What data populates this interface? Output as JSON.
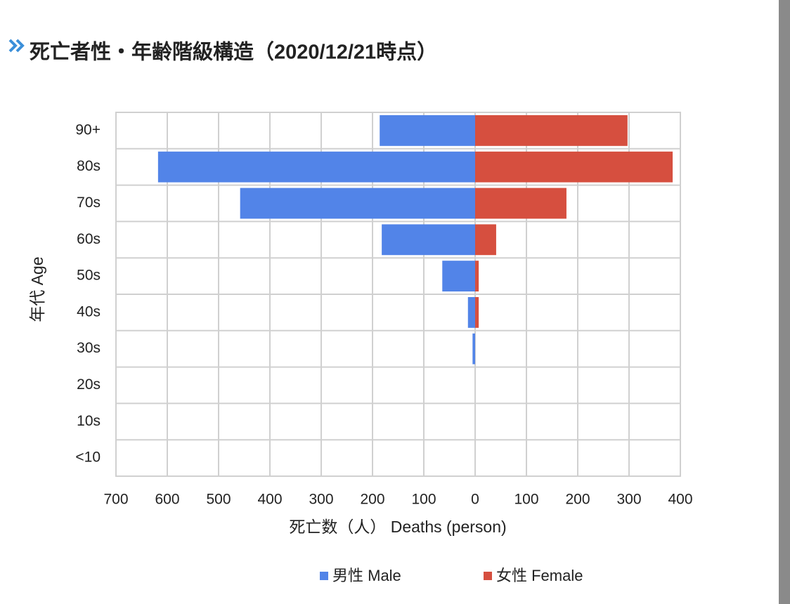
{
  "chart_data": {
    "type": "pyramid",
    "title": "死亡者性・年齢階級構造（2020/12/21時点）",
    "x_label": "死亡数（人） Deaths (person)",
    "y_label": "年代 Age",
    "categories": [
      "90+",
      "80s",
      "70s",
      "60s",
      "50s",
      "40s",
      "30s",
      "20s",
      "10s",
      "<10"
    ],
    "series": [
      {
        "name": "男性 Male",
        "color": "#5284e8",
        "values": [
          -186,
          -618,
          -458,
          -182,
          -64,
          -14,
          -5,
          0,
          0,
          0
        ]
      },
      {
        "name": "女性 Female",
        "color": "#d64f3f",
        "values": [
          297,
          385,
          178,
          41,
          7,
          7,
          0,
          0,
          0,
          0
        ]
      }
    ],
    "xlim": [
      -700,
      400
    ],
    "xticks": [
      {
        "value": -700,
        "label": "700"
      },
      {
        "value": -600,
        "label": "600"
      },
      {
        "value": -500,
        "label": "500"
      },
      {
        "value": -400,
        "label": "400"
      },
      {
        "value": -300,
        "label": "300"
      },
      {
        "value": -200,
        "label": "200"
      },
      {
        "value": -100,
        "label": "100"
      },
      0,
      100,
      200,
      300,
      400
    ],
    "grid": true,
    "legend": "bottom"
  }
}
